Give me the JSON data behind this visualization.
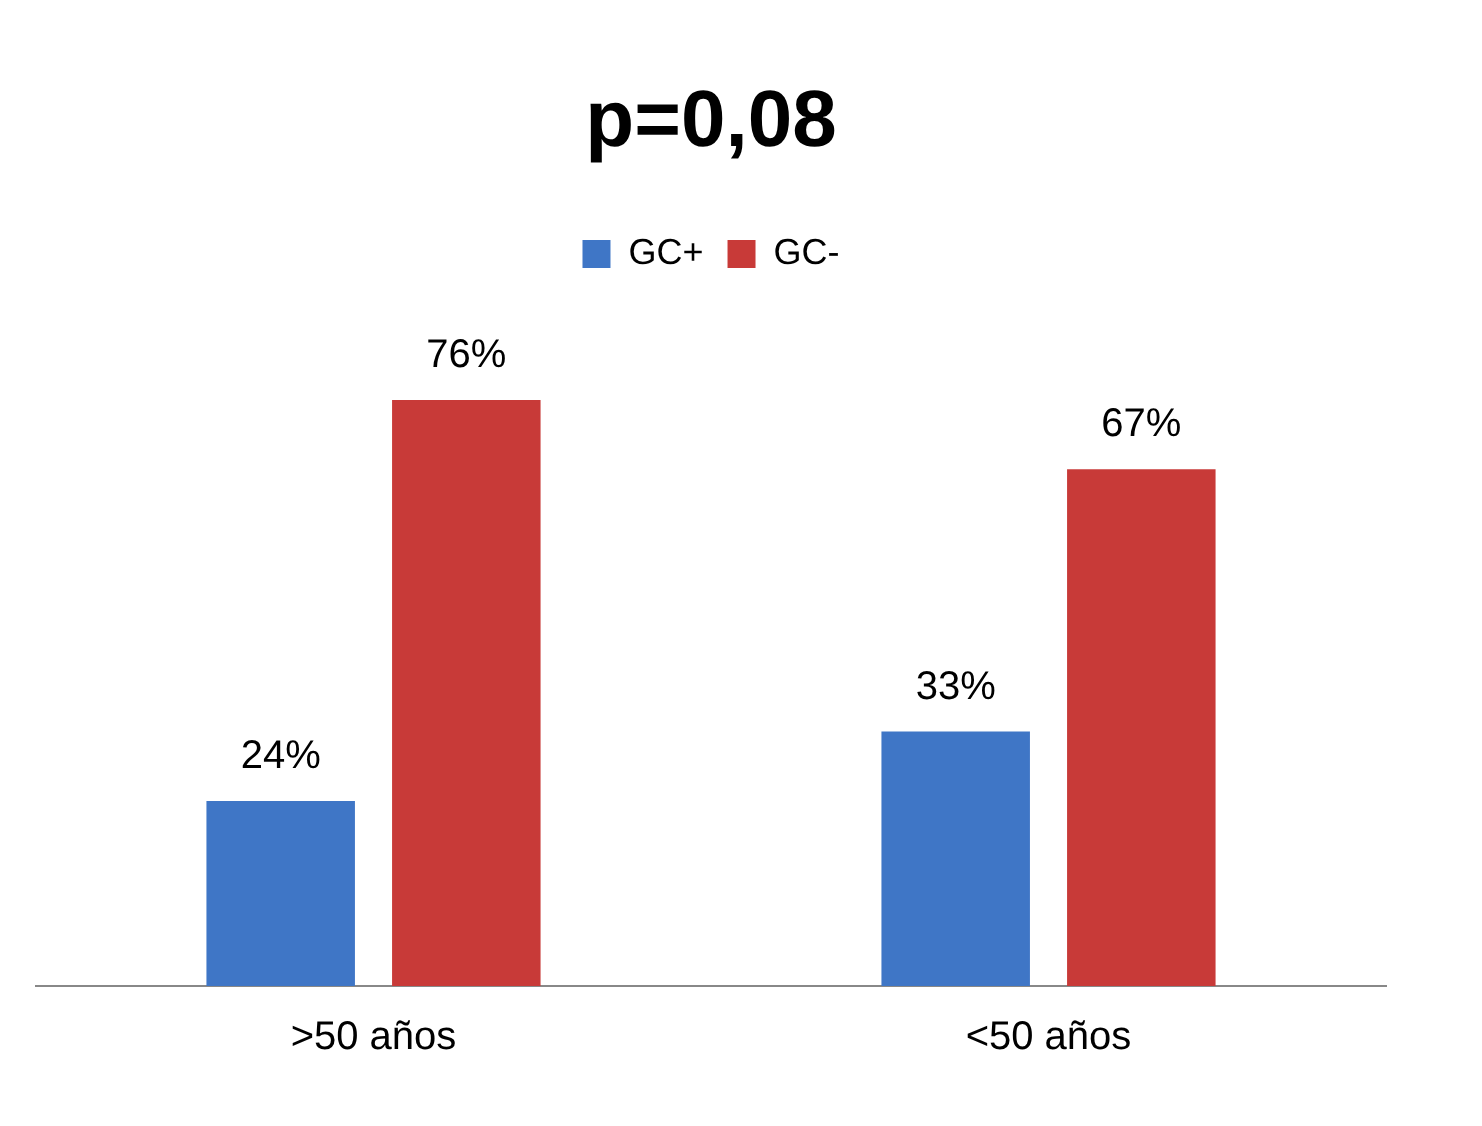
{
  "chart_data": {
    "type": "bar",
    "title": "p=0,08",
    "categories": [
      ">50 años",
      "<50 años"
    ],
    "series": [
      {
        "name": "GC+",
        "color": "#3f76c6",
        "values": [
          24,
          33
        ],
        "value_labels": [
          "24%",
          "33%"
        ]
      },
      {
        "name": "GC-",
        "color": "#c83a38",
        "values": [
          76,
          67
        ],
        "value_labels": [
          "76%",
          "67%"
        ]
      }
    ],
    "legend": "top",
    "grid": false,
    "tick_labels": "x"
  }
}
